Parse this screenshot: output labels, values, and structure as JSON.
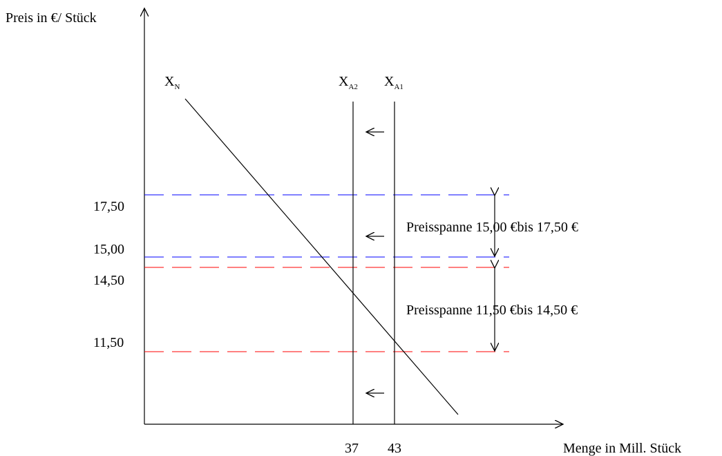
{
  "axes": {
    "y_label": "Preis in €/ Stück",
    "x_label": "Menge in Mill. Stück"
  },
  "curves": {
    "demand": {
      "main": "X",
      "sub": "N"
    },
    "supply2": {
      "main": "X",
      "sub": "A2"
    },
    "supply1": {
      "main": "X",
      "sub": "A1"
    }
  },
  "price_levels": {
    "p1750": {
      "label": "17,50",
      "color": "#0000ff"
    },
    "p1500": {
      "label": "15,00",
      "color": "#0000ff"
    },
    "p1450": {
      "label": "14,50",
      "color": "#ff0000"
    },
    "p1150": {
      "label": "11,50",
      "color": "#ff0000"
    }
  },
  "quantities": {
    "q37": "37",
    "q43": "43"
  },
  "spans": {
    "upper": "Preisspanne 15,00 €bis 17,50 €",
    "lower": "Preisspanne 11,50 €bis 14,50 €"
  }
}
